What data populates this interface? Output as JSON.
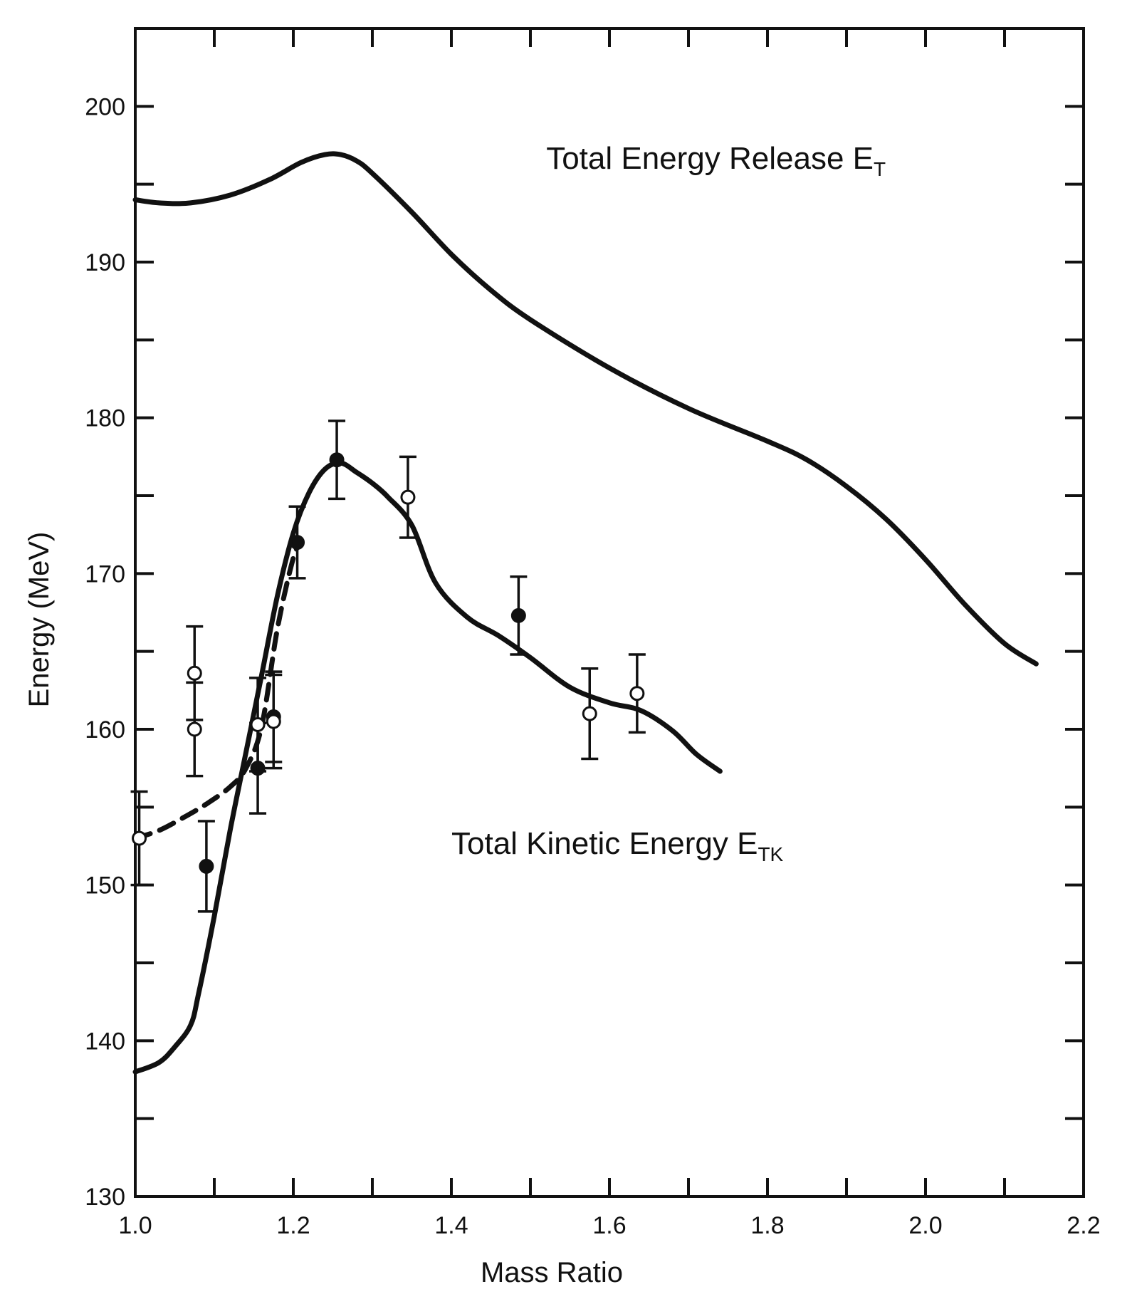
{
  "chart_data": {
    "type": "line",
    "title": "",
    "xlabel": "Mass Ratio",
    "ylabel": "Energy (MeV)",
    "xlim": [
      1.0,
      2.2
    ],
    "ylim": [
      130,
      205
    ],
    "grid": false,
    "x_ticks": [
      1.0,
      1.2,
      1.4,
      1.6,
      1.8,
      2.0,
      2.2
    ],
    "x_tick_labels": [
      "1.0",
      "1.2",
      "1.4",
      "1.6",
      "1.8",
      "2.0",
      "2.2"
    ],
    "y_ticks": [
      130,
      140,
      150,
      160,
      170,
      180,
      190,
      200
    ],
    "y_tick_labels": [
      "130",
      "140",
      "150",
      "160",
      "170",
      "180",
      "190",
      "200"
    ],
    "x_minor_ticks": [
      1.1,
      1.3,
      1.5,
      1.7,
      1.9,
      2.1
    ],
    "y_minor_ticks": [
      135,
      145,
      155,
      165,
      175,
      185,
      195
    ],
    "annotations": [
      {
        "id": "et",
        "main": "Total Energy Release E",
        "sub": "T",
        "x": 1.52,
        "y": 196
      },
      {
        "id": "etk",
        "main": "Total Kinetic Energy E",
        "sub": "TK",
        "x": 1.4,
        "y": 152
      }
    ],
    "series": [
      {
        "id": "total-energy-release",
        "style": "solid",
        "x": [
          1.0,
          1.03,
          1.07,
          1.12,
          1.17,
          1.21,
          1.24,
          1.26,
          1.28,
          1.3,
          1.35,
          1.4,
          1.45,
          1.5,
          1.6,
          1.7,
          1.8,
          1.85,
          1.9,
          1.95,
          2.0,
          2.05,
          2.1,
          2.14
        ],
        "y": [
          194,
          193.8,
          193.8,
          194.3,
          195.3,
          196.4,
          196.9,
          196.9,
          196.5,
          195.7,
          193.2,
          190.5,
          188.2,
          186.3,
          183.2,
          180.6,
          178.5,
          177.3,
          175.6,
          173.5,
          170.9,
          168.0,
          165.5,
          164.2
        ]
      },
      {
        "id": "total-kinetic-energy",
        "style": "solid",
        "x": [
          1.0,
          1.03,
          1.05,
          1.07,
          1.08,
          1.1,
          1.12,
          1.14,
          1.16,
          1.18,
          1.2,
          1.22,
          1.24,
          1.26,
          1.28,
          1.3,
          1.32,
          1.35,
          1.38,
          1.42,
          1.46,
          1.5,
          1.55,
          1.6,
          1.64,
          1.68,
          1.71,
          1.74
        ],
        "y": [
          138.0,
          138.6,
          139.6,
          141.0,
          143.0,
          148.0,
          153.5,
          158.5,
          163.5,
          168.6,
          172.6,
          175.2,
          176.7,
          177.1,
          176.5,
          175.8,
          174.9,
          173.1,
          169.4,
          167.2,
          166.0,
          164.6,
          162.7,
          161.7,
          161.2,
          159.9,
          158.4,
          157.3
        ]
      },
      {
        "id": "kinetic-dashed",
        "style": "dashed",
        "x": [
          1.0,
          1.03,
          1.06,
          1.09,
          1.12,
          1.14,
          1.16,
          1.18,
          1.2,
          1.21
        ],
        "y": [
          153.0,
          153.5,
          154.3,
          155.2,
          156.3,
          157.5,
          160.2,
          166.5,
          171.0,
          172.0
        ]
      },
      {
        "id": "data-filled",
        "style": "filled-points",
        "x": [
          1.09,
          1.155,
          1.175,
          1.205,
          1.255,
          1.485
        ],
        "y": [
          151.2,
          157.5,
          160.8,
          172.0,
          177.3,
          167.3
        ],
        "yerr": [
          2.9,
          2.9,
          2.9,
          2.3,
          2.5,
          2.5
        ]
      },
      {
        "id": "data-open",
        "style": "open-points",
        "x": [
          1.005,
          1.075,
          1.075,
          1.155,
          1.175,
          1.345,
          1.575,
          1.635
        ],
        "y": [
          153.0,
          163.6,
          160.0,
          160.3,
          160.5,
          174.9,
          161.0,
          162.3
        ],
        "yerr": [
          3.0,
          3.0,
          3.0,
          3.0,
          3.0,
          2.6,
          2.9,
          2.5
        ]
      }
    ]
  }
}
